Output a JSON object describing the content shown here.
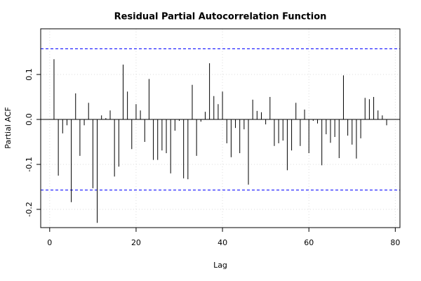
{
  "chart_data": {
    "type": "spike",
    "title": "Residual Partial Autocorrelation Function",
    "xlabel": "Lag",
    "ylabel": "Partial ACF",
    "x": [
      1,
      2,
      3,
      4,
      5,
      6,
      7,
      8,
      9,
      10,
      11,
      12,
      13,
      14,
      15,
      16,
      17,
      18,
      19,
      20,
      21,
      22,
      23,
      24,
      25,
      26,
      27,
      28,
      29,
      30,
      31,
      32,
      33,
      34,
      35,
      36,
      37,
      38,
      39,
      40,
      41,
      42,
      43,
      44,
      45,
      46,
      47,
      48,
      49,
      50,
      51,
      52,
      53,
      54,
      55,
      56,
      57,
      58,
      59,
      60,
      61,
      62,
      63,
      64,
      65,
      66,
      67,
      68,
      69,
      70,
      71,
      72,
      73,
      74,
      75,
      76,
      77,
      78
    ],
    "values": [
      0.134,
      -0.125,
      -0.031,
      -0.013,
      -0.184,
      0.058,
      -0.081,
      -0.013,
      0.037,
      -0.153,
      -0.23,
      0.009,
      0.003,
      0.02,
      -0.127,
      -0.105,
      0.122,
      0.062,
      -0.066,
      0.034,
      0.02,
      -0.05,
      0.09,
      -0.09,
      -0.09,
      -0.069,
      -0.075,
      -0.12,
      -0.025,
      -0.003,
      -0.131,
      -0.133,
      0.077,
      -0.081,
      -0.005,
      0.017,
      0.125,
      0.052,
      0.034,
      0.062,
      -0.053,
      -0.084,
      -0.019,
      -0.075,
      -0.022,
      -0.145,
      0.044,
      0.019,
      0.016,
      -0.011,
      0.05,
      -0.059,
      -0.053,
      -0.047,
      -0.113,
      -0.069,
      0.037,
      -0.059,
      0.022,
      -0.075,
      -0.003,
      -0.009,
      -0.102,
      -0.033,
      -0.052,
      -0.039,
      -0.086,
      0.098,
      -0.036,
      -0.056,
      -0.087,
      -0.042,
      0.048,
      0.045,
      0.05,
      0.02,
      0.009,
      -0.013
    ],
    "color": "#000000",
    "confidence_lines": [
      0.157,
      -0.157
    ],
    "confidence_color": "#0000ff",
    "xlim": [
      -2.08,
      81.08
    ],
    "ylim": [
      -0.2406,
      0.2016
    ],
    "xticks": [
      0,
      20,
      40,
      60,
      80
    ],
    "yticks": [
      -0.2,
      -0.1,
      {
        "value": 0,
        "label": "0.0"
      },
      0.1
    ],
    "grid": true
  }
}
